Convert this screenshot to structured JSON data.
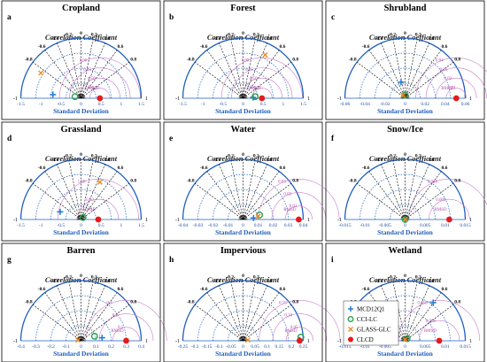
{
  "chart_data": {
    "type": "scatter",
    "diagram": "taylor",
    "series": [
      {
        "name": "MCD12Q1",
        "marker": "plus",
        "color": "#1f77d4"
      },
      {
        "name": "CCI-LC",
        "marker": "circle-open",
        "color": "#22a34a"
      },
      {
        "name": "GLASS-GLC",
        "marker": "x",
        "color": "#ef8a1e"
      },
      {
        "name": "CLCD",
        "marker": "circle-filled",
        "color": "#e41a1c"
      }
    ],
    "correlation_ticks": [
      "0",
      "0.2",
      "0.4",
      "0.6",
      "0.8",
      "1",
      "-0.2",
      "-0.4",
      "-0.6",
      "-0.8",
      "-1"
    ],
    "correlation_label": "Correlation Coefficient",
    "sd_label": "Standard Deviation",
    "rmsd_label": "RMSD",
    "panels": [
      {
        "letter": "a",
        "title": "Cropland",
        "xlim": [
          -1.5,
          1.5
        ],
        "sd_ticks": [
          "-1.5",
          "-1",
          "-0.5",
          "0",
          "0.5",
          "1",
          "1.5"
        ],
        "rmsd_ticks": [
          "0.25",
          "0.50",
          "0.75",
          "1.00"
        ],
        "points": [
          {
            "series": "MCD12Q1",
            "x": -0.7,
            "y": 0.09
          },
          {
            "series": "CCI-LC",
            "x": -0.15,
            "y": 0.04
          },
          {
            "series": "GLASS-GLC",
            "x": -1.0,
            "y": 0.63
          },
          {
            "series": "CLCD",
            "x": 0.47,
            "y": 0.0
          }
        ]
      },
      {
        "letter": "b",
        "title": "Forest",
        "xlim": [
          -1.5,
          1.5
        ],
        "sd_ticks": [
          "-1.5",
          "-1",
          "-0.5",
          "0",
          "0.5",
          "1",
          "1.5"
        ],
        "rmsd_ticks": [
          "0.25",
          "0.50",
          "0.75",
          "1.00"
        ],
        "points": [
          {
            "series": "MCD12Q1",
            "x": 0.25,
            "y": 0.02
          },
          {
            "series": "CCI-LC",
            "x": 0.3,
            "y": 0.04
          },
          {
            "series": "GLASS-GLC",
            "x": 0.55,
            "y": 1.08
          },
          {
            "series": "CLCD",
            "x": 0.47,
            "y": 0.0
          }
        ]
      },
      {
        "letter": "c",
        "title": "Shrubland",
        "xlim": [
          -0.06,
          0.06
        ],
        "sd_ticks": [
          "-0.06",
          "-0.04",
          "-0.02",
          "0",
          "0.02",
          "0.04",
          "0.06"
        ],
        "rmsd_ticks": [
          "0.01",
          "0.02",
          "0.03",
          "0.04"
        ],
        "points": [
          {
            "series": "MCD12Q1",
            "x": -0.004,
            "y": 0.016
          },
          {
            "series": "CCI-LC",
            "x": 0.0,
            "y": 0.003
          },
          {
            "series": "GLASS-GLC",
            "x": -0.002,
            "y": 0.003
          },
          {
            "series": "CLCD",
            "x": 0.051,
            "y": 0.0
          }
        ]
      },
      {
        "letter": "d",
        "title": "Grassland",
        "xlim": [
          -1.5,
          1.5
        ],
        "sd_ticks": [
          "-1.5",
          "-1",
          "-0.5",
          "0",
          "0.5",
          "1",
          "1.5"
        ],
        "rmsd_ticks": [
          "0.50",
          "1.00"
        ],
        "points": [
          {
            "series": "MCD12Q1",
            "x": -0.52,
            "y": 0.19
          },
          {
            "series": "CCI-LC",
            "x": 0.05,
            "y": 0.05
          },
          {
            "series": "GLASS-GLC",
            "x": 0.47,
            "y": 0.93
          },
          {
            "series": "CLCD",
            "x": 0.43,
            "y": 0.0
          }
        ]
      },
      {
        "letter": "e",
        "title": "Water",
        "xlim": [
          -0.04,
          0.04
        ],
        "sd_ticks": [
          "-0.04",
          "-0.03",
          "-0.02",
          "-0.01",
          "0",
          "0.01",
          "0.02",
          "0.03",
          "0.04"
        ],
        "rmsd_ticks": [
          "0.01",
          "0.02",
          "0.03"
        ],
        "points": [
          {
            "series": "MCD12Q1",
            "x": 0.007,
            "y": 0.001
          },
          {
            "series": "CCI-LC",
            "x": 0.011,
            "y": 0.003
          },
          {
            "series": "GLASS-GLC",
            "x": 0.01,
            "y": 0.002
          },
          {
            "series": "CLCD",
            "x": 0.037,
            "y": 0.0
          }
        ]
      },
      {
        "letter": "f",
        "title": "Snow/Ice",
        "xlim": [
          -0.015,
          0.015
        ],
        "sd_ticks": [
          "-0.015",
          "-0.01",
          "-0.005",
          "0",
          "0.005",
          "0.01",
          "0.015"
        ],
        "rmsd_ticks": [
          "0.005",
          "0.010"
        ],
        "points": [
          {
            "series": "MCD12Q1",
            "x": 0.0,
            "y": 0.0
          },
          {
            "series": "CCI-LC",
            "x": 0.0,
            "y": 0.0
          },
          {
            "series": "GLASS-GLC",
            "x": 0.0,
            "y": 0.0
          },
          {
            "series": "CLCD",
            "x": 0.011,
            "y": 0.0
          }
        ]
      },
      {
        "letter": "g",
        "title": "Barren",
        "xlim": [
          -0.4,
          0.4
        ],
        "sd_ticks": [
          "-0.4",
          "-0.3",
          "-0.2",
          "-0.1",
          "0",
          "0.1",
          "0.2",
          "0.3",
          "0.4"
        ],
        "rmsd_ticks": [
          "0.1",
          "0.2",
          "0.3"
        ],
        "points": [
          {
            "series": "MCD12Q1",
            "x": 0.14,
            "y": 0.02
          },
          {
            "series": "CCI-LC",
            "x": 0.09,
            "y": 0.03
          },
          {
            "series": "GLASS-GLC",
            "x": -0.02,
            "y": 0.005
          },
          {
            "series": "CLCD",
            "x": 0.3,
            "y": 0.0
          }
        ]
      },
      {
        "letter": "h",
        "title": "Impervious",
        "xlim": [
          -0.25,
          0.25
        ],
        "sd_ticks": [
          "-0.25",
          "-0.2",
          "-0.15",
          "-0.1",
          "-0.05",
          "0",
          "0.05",
          "0.1",
          "0.15",
          "0.2",
          "0.25"
        ],
        "rmsd_ticks": [
          "0.05",
          "0.10",
          "0.15"
        ],
        "points": [
          {
            "series": "MCD12Q1",
            "x": 0.235,
            "y": 0.003
          },
          {
            "series": "CCI-LC",
            "x": 0.24,
            "y": 0.015
          },
          {
            "series": "GLASS-GLC",
            "x": 0.02,
            "y": 0.003
          },
          {
            "series": "CLCD",
            "x": 0.235,
            "y": 0.0
          }
        ]
      },
      {
        "letter": "i",
        "title": "Wetland",
        "xlim": [
          -0.015,
          0.015
        ],
        "sd_ticks": [
          "-0.015",
          "-0.01",
          "-0.005",
          "0",
          "0.005",
          "0.01",
          "0.015"
        ],
        "rmsd_ticks": [
          "0.005",
          "0.010"
        ],
        "points": [
          {
            "series": "MCD12Q1",
            "x": 0.007,
            "y": 0.0095
          },
          {
            "series": "CCI-LC",
            "x": 0.0005,
            "y": 0.0005
          },
          {
            "series": "GLASS-GLC",
            "x": 0.0,
            "y": 0.0003
          },
          {
            "series": "CLCD",
            "x": 0.0085,
            "y": 0.0
          }
        ]
      }
    ]
  }
}
